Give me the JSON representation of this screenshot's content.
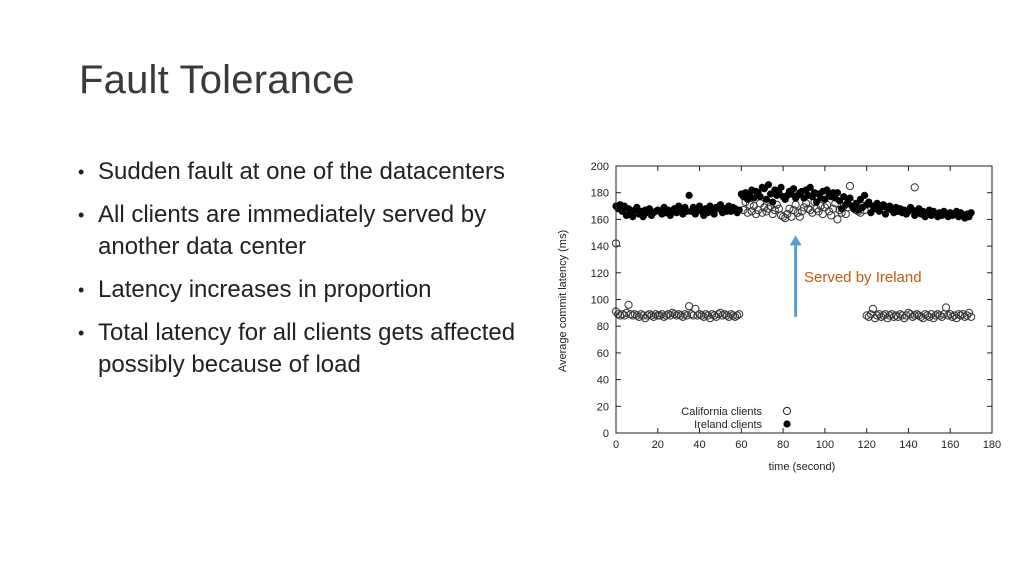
{
  "slide": {
    "title": "Fault Tolerance",
    "bullets": [
      "Sudden fault at one of the datacenters",
      "All clients are immediately served by another data center",
      "Latency increases in proportion",
      "Total latency for all clients gets affected possibly because of load"
    ]
  },
  "chart_data": {
    "type": "scatter",
    "xlabel": "time (second)",
    "ylabel": "Average commit latency (ms)",
    "xlim": [
      0,
      180
    ],
    "ylim": [
      0,
      200
    ],
    "xticks": [
      0,
      20,
      40,
      60,
      80,
      100,
      120,
      140,
      160,
      180
    ],
    "yticks": [
      0,
      20,
      40,
      60,
      80,
      100,
      120,
      140,
      160,
      180,
      200
    ],
    "grid": false,
    "legend_position": "bottom-center",
    "annotation": {
      "text": "Served by Ireland",
      "color": "#c55a11",
      "arrow_color": "#5b9bd5",
      "x": 86,
      "y_from": 87,
      "y_to": 148
    },
    "series": [
      {
        "name": "California clients",
        "marker": "open-circle",
        "x": [
          0,
          1,
          2,
          3,
          4,
          5,
          6,
          7,
          8,
          9,
          10,
          11,
          12,
          13,
          14,
          15,
          16,
          17,
          18,
          19,
          20,
          21,
          22,
          23,
          24,
          25,
          26,
          27,
          28,
          29,
          30,
          31,
          32,
          33,
          34,
          35,
          36,
          37,
          38,
          39,
          40,
          41,
          42,
          43,
          44,
          45,
          46,
          47,
          48,
          49,
          50,
          51,
          52,
          53,
          54,
          55,
          56,
          57,
          58,
          59,
          0,
          61,
          62,
          63,
          64,
          65,
          66,
          67,
          68,
          69,
          70,
          71,
          72,
          73,
          74,
          75,
          76,
          77,
          78,
          79,
          80,
          81,
          82,
          83,
          84,
          85,
          86,
          87,
          88,
          89,
          90,
          91,
          92,
          93,
          94,
          95,
          96,
          97,
          98,
          99,
          100,
          101,
          102,
          103,
          104,
          105,
          106,
          107,
          108,
          109,
          110,
          111,
          112,
          113,
          114,
          115,
          116,
          117,
          118,
          119,
          120,
          121,
          122,
          123,
          124,
          125,
          126,
          127,
          128,
          129,
          130,
          131,
          132,
          133,
          134,
          135,
          136,
          137,
          138,
          139,
          140,
          141,
          142,
          143,
          144,
          145,
          146,
          147,
          148,
          149,
          150,
          151,
          152,
          153,
          154,
          155,
          156,
          157,
          158,
          159,
          160,
          161,
          162,
          163,
          164,
          165,
          166,
          167,
          168,
          169,
          170,
          143
        ],
        "y": [
          91,
          89,
          88,
          89,
          88,
          90,
          96,
          89,
          88,
          89,
          88,
          87,
          89,
          88,
          86,
          88,
          89,
          88,
          87,
          89,
          88,
          88,
          89,
          87,
          88,
          89,
          88,
          90,
          89,
          88,
          89,
          88,
          87,
          89,
          88,
          95,
          89,
          88,
          93,
          88,
          89,
          88,
          87,
          89,
          88,
          86,
          89,
          88,
          87,
          89,
          90,
          88,
          89,
          88,
          87,
          89,
          88,
          87,
          88,
          89,
          142,
          167,
          173,
          165,
          171,
          166,
          170,
          164,
          167,
          172,
          165,
          169,
          166,
          168,
          170,
          164,
          167,
          171,
          168,
          163,
          162,
          161,
          164,
          168,
          162,
          167,
          171,
          165,
          162,
          166,
          169,
          172,
          168,
          167,
          165,
          173,
          168,
          166,
          170,
          164,
          169,
          171,
          166,
          163,
          168,
          172,
          160,
          167,
          165,
          170,
          164,
          169,
          185,
          172,
          168,
          167,
          166,
          165,
          170,
          167,
          88,
          87,
          89,
          93,
          86,
          88,
          89,
          87,
          88,
          89,
          86,
          88,
          89,
          87,
          88,
          87,
          89,
          88,
          86,
          88,
          90,
          89,
          87,
          88,
          89,
          88,
          87,
          86,
          89,
          88,
          87,
          89,
          86,
          88,
          89,
          88,
          87,
          89,
          94,
          88,
          89,
          87,
          88,
          86,
          89,
          88,
          89,
          87,
          88,
          90,
          87,
          184
        ]
      },
      {
        "name": "Ireland clients",
        "marker": "filled-circle",
        "x": [
          0,
          1,
          2,
          3,
          4,
          5,
          6,
          7,
          8,
          9,
          10,
          11,
          12,
          13,
          14,
          15,
          16,
          17,
          18,
          19,
          20,
          21,
          22,
          23,
          24,
          25,
          26,
          27,
          28,
          29,
          30,
          31,
          32,
          33,
          34,
          35,
          36,
          37,
          38,
          39,
          40,
          41,
          42,
          43,
          44,
          45,
          46,
          47,
          48,
          49,
          50,
          51,
          52,
          53,
          54,
          55,
          56,
          57,
          58,
          59,
          60,
          61,
          62,
          63,
          64,
          65,
          66,
          67,
          68,
          69,
          70,
          71,
          72,
          73,
          74,
          75,
          76,
          77,
          78,
          79,
          80,
          81,
          82,
          83,
          84,
          85,
          86,
          87,
          88,
          89,
          90,
          91,
          92,
          93,
          94,
          95,
          96,
          97,
          98,
          99,
          100,
          101,
          102,
          103,
          104,
          105,
          106,
          107,
          108,
          109,
          110,
          111,
          112,
          113,
          114,
          115,
          116,
          117,
          118,
          119,
          120,
          121,
          122,
          123,
          124,
          125,
          126,
          127,
          128,
          129,
          130,
          131,
          132,
          133,
          134,
          135,
          136,
          137,
          138,
          139,
          140,
          141,
          142,
          143,
          144,
          145,
          146,
          147,
          148,
          149,
          150,
          151,
          152,
          153,
          154,
          155,
          156,
          157,
          158,
          159,
          160,
          161,
          162,
          163,
          164,
          165,
          166,
          167,
          168,
          169,
          170
        ],
        "y": [
          170,
          168,
          171,
          166,
          170,
          163,
          168,
          165,
          162,
          167,
          169,
          164,
          166,
          162,
          167,
          165,
          168,
          163,
          165,
          166,
          167,
          166,
          164,
          169,
          165,
          167,
          163,
          166,
          168,
          165,
          170,
          166,
          164,
          169,
          166,
          178,
          166,
          169,
          164,
          167,
          170,
          166,
          163,
          168,
          165,
          170,
          166,
          164,
          169,
          168,
          171,
          165,
          168,
          166,
          170,
          166,
          169,
          168,
          165,
          167,
          179,
          177,
          180,
          175,
          178,
          182,
          176,
          181,
          180,
          177,
          184,
          183,
          175,
          186,
          179,
          173,
          182,
          178,
          180,
          184,
          177,
          175,
          178,
          181,
          179,
          183,
          176,
          178,
          180,
          181,
          176,
          182,
          178,
          184,
          177,
          180,
          173,
          179,
          176,
          181,
          175,
          182,
          178,
          177,
          180,
          176,
          180,
          174,
          168,
          177,
          171,
          173,
          176,
          170,
          168,
          172,
          167,
          175,
          169,
          178,
          171,
          173,
          165,
          170,
          168,
          172,
          166,
          169,
          171,
          164,
          168,
          170,
          167,
          165,
          169,
          166,
          168,
          165,
          167,
          164,
          166,
          169,
          167,
          163,
          165,
          168,
          164,
          166,
          162,
          165,
          167,
          163,
          166,
          164,
          162,
          165,
          163,
          166,
          164,
          162,
          165,
          163,
          164,
          166,
          162,
          165,
          163,
          161,
          164,
          162,
          165
        ]
      }
    ]
  }
}
